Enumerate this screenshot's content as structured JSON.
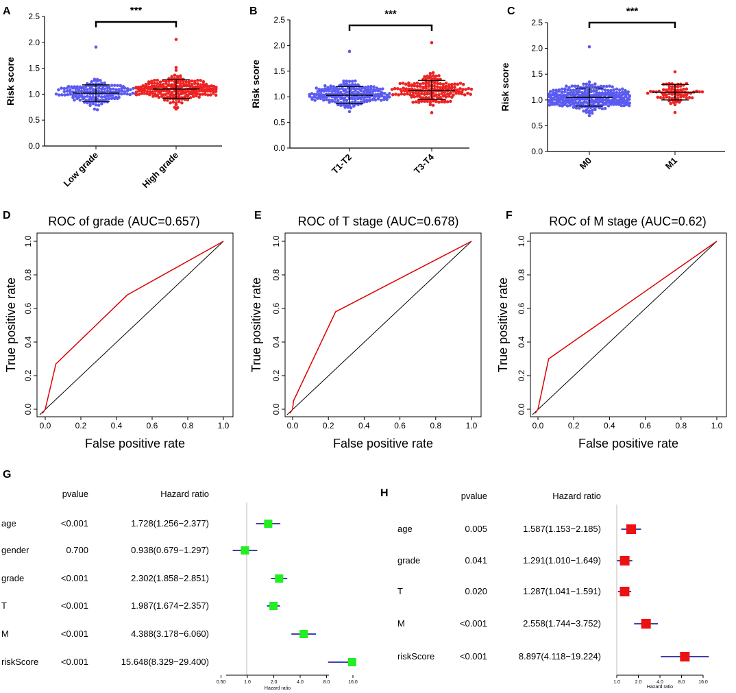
{
  "chart_data": [
    {
      "panel": "A",
      "type": "scatter",
      "ylabel": "Risk score",
      "ylim": [
        0,
        2.5
      ],
      "yticks": [
        "0.0",
        "0.5",
        "1.0",
        "1.5",
        "2.0",
        "2.5"
      ],
      "categories": [
        "Low grade",
        "High grade"
      ],
      "significance": "***",
      "colors": [
        "#5b5bf0",
        "#ee2222"
      ],
      "summary": [
        {
          "name": "Low grade",
          "mean": 1.02,
          "sd_low": 0.86,
          "sd_high": 1.18,
          "min": 0.68,
          "max": 1.92,
          "n": 160
        },
        {
          "name": "High grade",
          "mean": 1.1,
          "sd_low": 0.92,
          "sd_high": 1.28,
          "min": 0.72,
          "max": 2.07,
          "n": 220
        }
      ]
    },
    {
      "panel": "B",
      "type": "scatter",
      "ylabel": "Risk score",
      "ylim": [
        0,
        2.5
      ],
      "yticks": [
        "0.0",
        "0.5",
        "1.0",
        "1.5",
        "2.0",
        "2.5"
      ],
      "categories": [
        "T1-T2",
        "T3-T4"
      ],
      "significance": "***",
      "colors": [
        "#5b5bf0",
        "#ee2222"
      ],
      "summary": [
        {
          "name": "T1-T2",
          "mean": 1.03,
          "sd_low": 0.87,
          "sd_high": 1.2,
          "min": 0.7,
          "max": 1.92,
          "n": 200
        },
        {
          "name": "T3-T4",
          "mean": 1.12,
          "sd_low": 0.95,
          "sd_high": 1.32,
          "min": 0.68,
          "max": 2.07,
          "n": 180
        }
      ]
    },
    {
      "panel": "C",
      "type": "scatter",
      "ylabel": "Risk score",
      "ylim": [
        0,
        2.5
      ],
      "yticks": [
        "0.0",
        "0.5",
        "1.0",
        "1.5",
        "2.0",
        "2.5"
      ],
      "categories": [
        "M0",
        "M1"
      ],
      "significance": "***",
      "colors": [
        "#5b5bf0",
        "#ee2222"
      ],
      "summary": [
        {
          "name": "M0",
          "mean": 1.05,
          "sd_low": 0.88,
          "sd_high": 1.23,
          "min": 0.68,
          "max": 2.07,
          "n": 300
        },
        {
          "name": "M1",
          "mean": 1.15,
          "sd_low": 1.0,
          "sd_high": 1.3,
          "min": 0.77,
          "max": 1.55,
          "n": 75
        }
      ]
    },
    {
      "panel": "D",
      "type": "line",
      "title": "ROC of grade (AUC=0.657)",
      "xlabel": "False positive rate",
      "ylabel": "True positive rate",
      "xlim": [
        0,
        1
      ],
      "ylim": [
        0,
        1
      ],
      "ticks": [
        "0.0",
        "0.2",
        "0.4",
        "0.6",
        "0.8",
        "1.0"
      ],
      "series": [
        {
          "name": "ROC",
          "color": "#dd0000",
          "x": [
            0,
            0.06,
            0.46,
            1
          ],
          "y": [
            0,
            0.27,
            0.68,
            1
          ]
        }
      ]
    },
    {
      "panel": "E",
      "type": "line",
      "title": "ROC of T stage (AUC=0.678)",
      "xlabel": "False positive rate",
      "ylabel": "True positive rate",
      "xlim": [
        0,
        1
      ],
      "ylim": [
        0,
        1
      ],
      "ticks": [
        "0.0",
        "0.2",
        "0.4",
        "0.6",
        "0.8",
        "1.0"
      ],
      "series": [
        {
          "name": "ROC",
          "color": "#dd0000",
          "x": [
            0,
            0.005,
            0.24,
            1
          ],
          "y": [
            0,
            0.05,
            0.58,
            1
          ]
        }
      ]
    },
    {
      "panel": "F",
      "type": "line",
      "title": "ROC of M stage (AUC=0.62)",
      "xlabel": "False positive rate",
      "ylabel": "True positive rate",
      "xlim": [
        0,
        1
      ],
      "ylim": [
        0,
        1
      ],
      "ticks": [
        "0.0",
        "0.2",
        "0.4",
        "0.6",
        "0.8",
        "1.0"
      ],
      "series": [
        {
          "name": "ROC",
          "color": "#dd0000",
          "x": [
            0,
            0.06,
            1
          ],
          "y": [
            0,
            0.3,
            1
          ]
        }
      ]
    },
    {
      "panel": "G",
      "type": "forest",
      "col_pvalue": "pvalue",
      "col_hr": "Hazard ratio",
      "xlabel": "Hazard ratio",
      "xticks": [
        "0.50",
        "1.0",
        "2.0",
        "4.0",
        "8.0",
        "16.0"
      ],
      "xtick_values": [
        0.5,
        1,
        2,
        4,
        8,
        16
      ],
      "xlim": [
        0.5,
        16
      ],
      "marker_color": "#22ee22",
      "rows": [
        {
          "label": "age",
          "pvalue": "<0.001",
          "hr_text": "1.728(1.256−2.377)",
          "hr": 1.728,
          "lo": 1.256,
          "hi": 2.377
        },
        {
          "label": "gender",
          "pvalue": "0.700",
          "hr_text": "0.938(0.679−1.297)",
          "hr": 0.938,
          "lo": 0.679,
          "hi": 1.297
        },
        {
          "label": "grade",
          "pvalue": "<0.001",
          "hr_text": "2.302(1.858−2.851)",
          "hr": 2.302,
          "lo": 1.858,
          "hi": 2.851
        },
        {
          "label": "T",
          "pvalue": "<0.001",
          "hr_text": "1.987(1.674−2.357)",
          "hr": 1.987,
          "lo": 1.674,
          "hi": 2.357
        },
        {
          "label": "M",
          "pvalue": "<0.001",
          "hr_text": "4.388(3.178−6.060)",
          "hr": 4.388,
          "lo": 3.178,
          "hi": 6.06
        },
        {
          "label": "riskScore",
          "pvalue": "<0.001",
          "hr_text": "15.648(8.329−29.400)",
          "hr": 15.648,
          "lo": 8.329,
          "hi": 29.4
        }
      ]
    },
    {
      "panel": "H",
      "type": "forest",
      "col_pvalue": "pvalue",
      "col_hr": "Hazard ratio",
      "xlabel": "Hazard ratio",
      "xticks": [
        "1.0",
        "2.0",
        "4.0",
        "8.0",
        "16.0"
      ],
      "xtick_values": [
        1,
        2,
        4,
        8,
        16
      ],
      "xlim": [
        1,
        16
      ],
      "marker_color": "#ee1111",
      "rows": [
        {
          "label": "age",
          "pvalue": "0.005",
          "hr_text": "1.587(1.153−2.185)",
          "hr": 1.587,
          "lo": 1.153,
          "hi": 2.185
        },
        {
          "label": "grade",
          "pvalue": "0.041",
          "hr_text": "1.291(1.010−1.649)",
          "hr": 1.291,
          "lo": 1.01,
          "hi": 1.649
        },
        {
          "label": "T",
          "pvalue": "0.020",
          "hr_text": "1.287(1.041−1.591)",
          "hr": 1.287,
          "lo": 1.041,
          "hi": 1.591
        },
        {
          "label": "M",
          "pvalue": "<0.001",
          "hr_text": "2.558(1.744−3.752)",
          "hr": 2.558,
          "lo": 1.744,
          "hi": 3.752
        },
        {
          "label": "riskScore",
          "pvalue": "<0.001",
          "hr_text": "8.897(4.118−19.224)",
          "hr": 8.897,
          "lo": 4.118,
          "hi": 19.224
        }
      ]
    }
  ]
}
